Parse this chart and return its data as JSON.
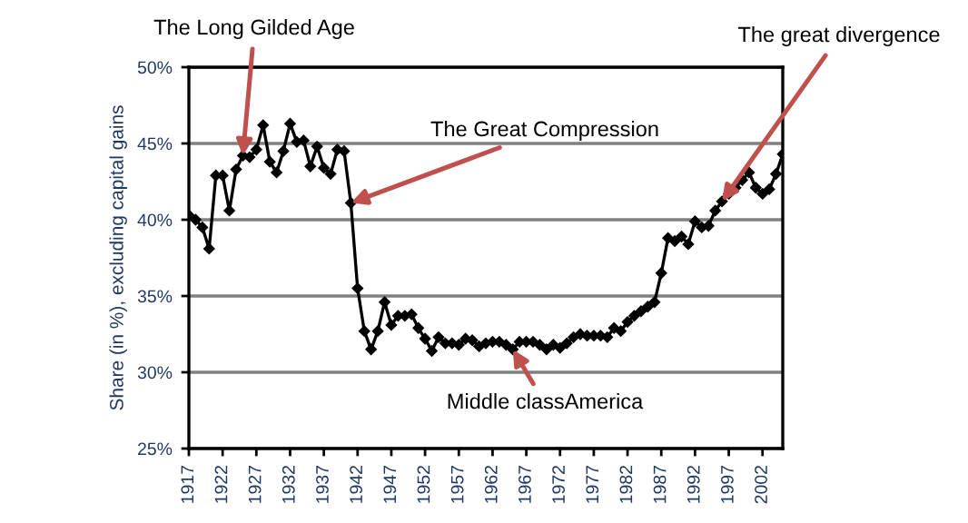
{
  "chart_data": {
    "type": "line",
    "ylabel": "Share (in %), excluding capital gains",
    "x": [
      1917,
      1918,
      1919,
      1920,
      1921,
      1922,
      1923,
      1924,
      1925,
      1926,
      1927,
      1928,
      1929,
      1930,
      1931,
      1932,
      1933,
      1934,
      1935,
      1936,
      1937,
      1938,
      1939,
      1940,
      1941,
      1942,
      1943,
      1944,
      1945,
      1946,
      1947,
      1948,
      1949,
      1950,
      1951,
      1952,
      1953,
      1954,
      1955,
      1956,
      1957,
      1958,
      1959,
      1960,
      1961,
      1962,
      1963,
      1964,
      1965,
      1966,
      1967,
      1968,
      1969,
      1970,
      1971,
      1972,
      1973,
      1974,
      1975,
      1976,
      1977,
      1978,
      1979,
      1980,
      1981,
      1982,
      1983,
      1984,
      1985,
      1986,
      1987,
      1988,
      1989,
      1990,
      1991,
      1992,
      1993,
      1994,
      1995,
      1996,
      1997,
      1998,
      1999,
      2000,
      2001,
      2002,
      2003,
      2004,
      2005
    ],
    "series": [
      {
        "color": "#000000",
        "values": [
          40.3,
          40.0,
          39.5,
          38.1,
          42.9,
          42.9,
          40.6,
          43.3,
          44.2,
          44.1,
          44.6,
          46.2,
          43.8,
          43.1,
          44.5,
          46.3,
          45.1,
          45.2,
          43.5,
          44.8,
          43.4,
          43.0,
          44.6,
          44.5,
          41.1,
          35.5,
          32.7,
          31.5,
          32.7,
          34.6,
          33.1,
          33.7,
          33.7,
          33.8,
          32.9,
          32.2,
          31.4,
          32.3,
          31.9,
          31.9,
          31.8,
          32.2,
          32.1,
          31.7,
          31.9,
          32.0,
          32.0,
          31.8,
          31.5,
          32.0,
          32.0,
          32.0,
          31.8,
          31.5,
          31.8,
          31.6,
          31.9,
          32.3,
          32.5,
          32.4,
          32.4,
          32.4,
          32.3,
          32.9,
          32.7,
          33.3,
          33.7,
          34.0,
          34.3,
          34.6,
          36.5,
          38.8,
          38.6,
          38.9,
          38.4,
          39.9,
          39.5,
          39.6,
          40.6,
          41.2,
          41.7,
          42.1,
          42.6,
          43.1,
          42.1,
          41.7,
          42.0,
          43.0,
          44.3
        ]
      }
    ],
    "xlim": [
      1917,
      2005
    ],
    "xticks": [
      1917,
      1922,
      1927,
      1932,
      1937,
      1942,
      1947,
      1952,
      1957,
      1962,
      1967,
      1972,
      1977,
      1982,
      1987,
      1992,
      1997,
      2002
    ],
    "ylim": [
      25,
      50
    ],
    "yticks": [
      {
        "value": 25,
        "label": "25%"
      },
      {
        "value": 30,
        "label": "30%"
      },
      {
        "value": 35,
        "label": "35%"
      },
      {
        "value": 40,
        "label": "40%"
      },
      {
        "value": 45,
        "label": "45%"
      },
      {
        "value": 50,
        "label": "50%"
      }
    ],
    "grid": "y",
    "marker": "diamond",
    "line_style": "solid",
    "annotations": [
      {
        "text": "The Long Gilded Age",
        "x": 1925,
        "y": 44.2
      },
      {
        "text": "The Great Compression",
        "x": 1941,
        "y": 41.1
      },
      {
        "text": "Middle classAmerica",
        "x": 1965,
        "y": 31.5
      },
      {
        "text": "The great divergence",
        "x": 1996,
        "y": 41.2
      }
    ]
  }
}
